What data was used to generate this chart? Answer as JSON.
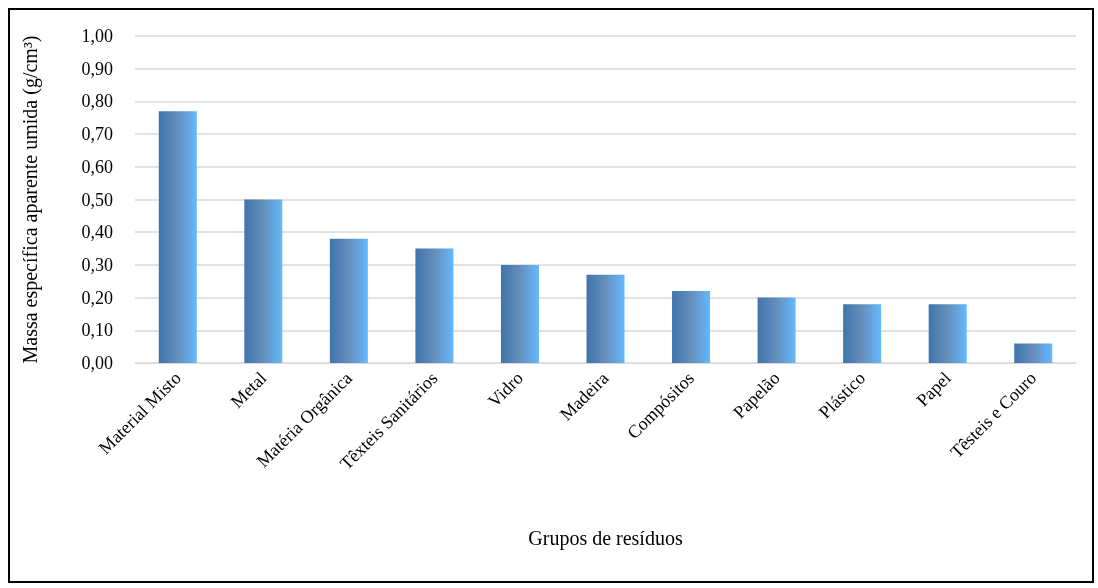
{
  "chart_data": {
    "type": "bar",
    "xlabel": "Grupos de resíduos",
    "ylabel": "Massa específica aparente umida (g/cm³)",
    "categories": [
      "Material Misto",
      "Metal",
      "Matéria Orgânica",
      "Têxteis Sanitários",
      "Vidro",
      "Madeira",
      "Compósitos",
      "Papelão",
      "Plástico",
      "Papel",
      "Têsteis e Couro"
    ],
    "values": [
      0.77,
      0.5,
      0.38,
      0.35,
      0.3,
      0.27,
      0.22,
      0.2,
      0.18,
      0.18,
      0.06
    ],
    "color": "#3f74ab",
    "ylim": [
      0,
      1
    ],
    "yticks": [
      {
        "value": 0,
        "label": "0,00"
      },
      {
        "value": 0.1,
        "label": "0,10"
      },
      {
        "value": 0.2,
        "label": "0,20"
      },
      {
        "value": 0.3,
        "label": "0,30"
      },
      {
        "value": 0.4,
        "label": "0,40"
      },
      {
        "value": 0.5,
        "label": "0,50"
      },
      {
        "value": 0.6,
        "label": "0,60"
      },
      {
        "value": 0.7,
        "label": "0,70"
      },
      {
        "value": 0.8,
        "label": "0,80"
      },
      {
        "value": 0.9,
        "label": "0,90"
      },
      {
        "value": 1,
        "label": "1,00"
      }
    ],
    "grid": "y"
  }
}
